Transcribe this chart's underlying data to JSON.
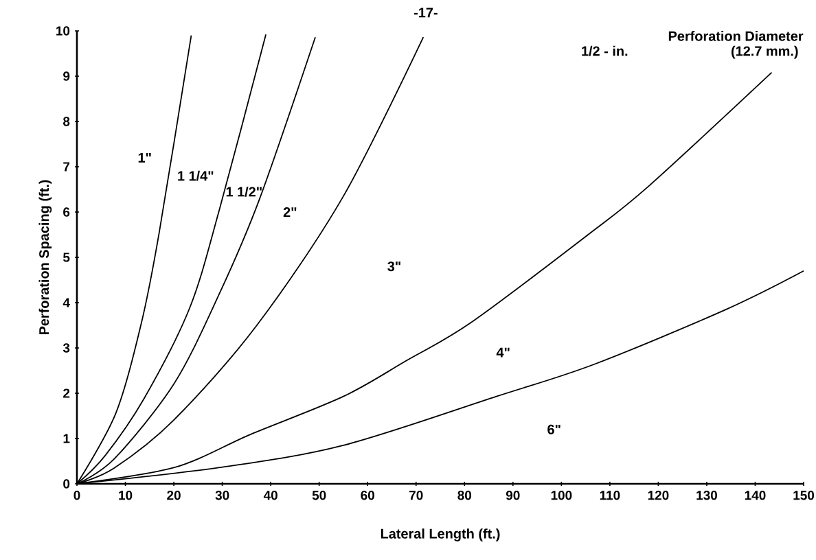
{
  "chart_data": {
    "type": "line",
    "xlabel": "Lateral Length (ft.)",
    "ylabel": "Perforation Spacing (ft.)",
    "xlim": [
      0,
      150
    ],
    "ylim": [
      0,
      10
    ],
    "xticks": [
      0,
      10,
      20,
      30,
      40,
      50,
      60,
      70,
      80,
      90,
      100,
      110,
      120,
      130,
      140,
      150
    ],
    "yticks": [
      0,
      1,
      2,
      3,
      4,
      5,
      6,
      7,
      8,
      9,
      10
    ],
    "grid": false,
    "marker": "none",
    "line_style": "solid",
    "series": [
      {
        "color": "#000000",
        "x": [
          0,
          8.0,
          13.3,
          17.0,
          23.6
        ],
        "values": [
          0,
          1.55,
          3.55,
          5.56,
          9.9
        ]
      },
      {
        "color": "#000000",
        "x": [
          0,
          5.8,
          13.9,
          23.3,
          29.5,
          39.0
        ],
        "values": [
          0,
          0.62,
          1.89,
          3.89,
          6.09,
          9.92
        ]
      },
      {
        "color": "#000000",
        "x": [
          0,
          7.7,
          20.1,
          29.5,
          37.7,
          49.2
        ],
        "values": [
          0,
          0.55,
          2.22,
          4.22,
          6.29,
          9.86
        ]
      },
      {
        "color": "#000000",
        "x": [
          0,
          7.7,
          20.1,
          37.0,
          55.0,
          71.5
        ],
        "values": [
          0,
          0.35,
          1.42,
          3.48,
          6.35,
          9.86
        ]
      },
      {
        "color": "#000000",
        "x": [
          0,
          20.1,
          35.8,
          55.0,
          67.7,
          81.6,
          105.5,
          118.2,
          143.4
        ],
        "values": [
          0,
          0.36,
          1.09,
          1.93,
          2.7,
          3.58,
          5.5,
          6.59,
          9.08
        ]
      },
      {
        "color": "#000000",
        "x": [
          0,
          29.5,
          55.0,
          86.6,
          106.8,
          134.0,
          150.0
        ],
        "values": [
          0,
          0.36,
          0.85,
          1.93,
          2.64,
          3.85,
          4.7
        ]
      }
    ],
    "annotations": [
      "-17-",
      "Perforation Diameter",
      "1/2 - in.",
      "(12.7 mm.)",
      "1\"",
      "1 1/4\"",
      "1 1/2\"",
      "2\"",
      "3\"",
      "4\"",
      "6\""
    ]
  }
}
